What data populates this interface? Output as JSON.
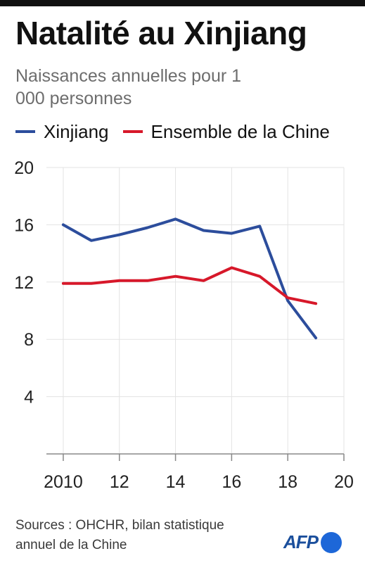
{
  "title": "Natalité au Xinjiang",
  "subtitle": "Naissances annuelles pour 1 000 personnes",
  "colors": {
    "xinjiang": "#2c4d9c",
    "china": "#d7182a",
    "grid": "#e3e3e3",
    "axis": "#888888",
    "tick_text": "#222222"
  },
  "chart_data": {
    "type": "line",
    "xlim": [
      2009.4,
      2020
    ],
    "ylim": [
      0,
      20
    ],
    "yticks": [
      4,
      8,
      12,
      16,
      20
    ],
    "ytick_labels": [
      "4",
      "8",
      "12",
      "16",
      "20"
    ],
    "xticks": [
      2010,
      2012,
      2014,
      2016,
      2018,
      2020
    ],
    "xtick_labels": [
      "2010",
      "12",
      "14",
      "16",
      "18",
      "20"
    ],
    "grid": "vertical and horizontal",
    "legend_position": "top",
    "series": [
      {
        "name": "Xinjiang",
        "color_key": "xinjiang",
        "x": [
          2010,
          2011,
          2012,
          2013,
          2014,
          2015,
          2016,
          2017,
          2018,
          2019
        ],
        "values": [
          16.0,
          14.9,
          15.3,
          15.8,
          16.4,
          15.6,
          15.4,
          15.9,
          10.7,
          8.1
        ]
      },
      {
        "name": "Ensemble de la Chine",
        "color_key": "china",
        "x": [
          2010,
          2011,
          2012,
          2013,
          2014,
          2015,
          2016,
          2017,
          2018,
          2019
        ],
        "values": [
          11.9,
          11.9,
          12.1,
          12.1,
          12.4,
          12.1,
          13.0,
          12.4,
          10.9,
          10.5
        ]
      }
    ]
  },
  "source": "Sources : OHCHR, bilan statistique annuel de la Chine",
  "logo": {
    "text": "AFP",
    "icon": "afp-dot-icon"
  }
}
